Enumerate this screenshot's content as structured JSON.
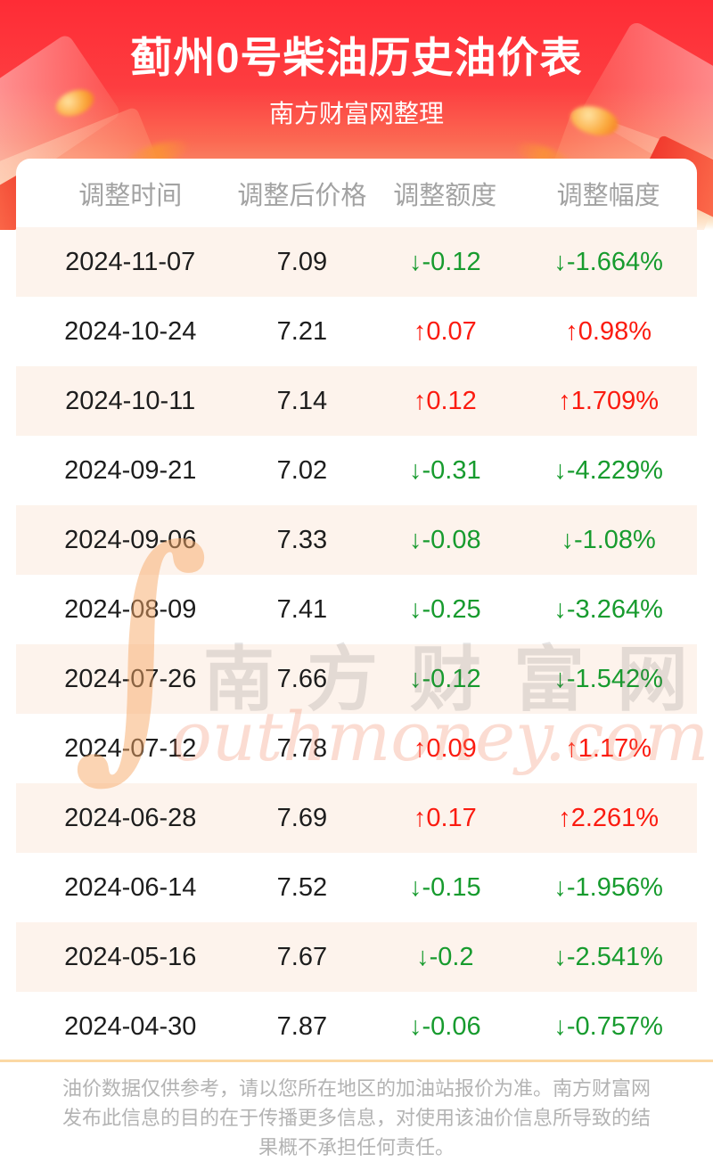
{
  "page": {
    "title": "蓟州0号柴油历史油价表",
    "subtitle": "南方财富网整理"
  },
  "watermark": {
    "s_glyph": "∫",
    "cn": "南方财富网",
    "en": "outhmoney.com"
  },
  "table": {
    "headers": [
      "调整时间",
      "调整后价格",
      "调整额度",
      "调整幅度"
    ],
    "rows": [
      {
        "date": "2024-11-07",
        "price": "7.09",
        "change": "↓-0.12",
        "pct": "↓-1.664%",
        "trend": "down"
      },
      {
        "date": "2024-10-24",
        "price": "7.21",
        "change": "↑0.07",
        "pct": "↑0.98%",
        "trend": "up"
      },
      {
        "date": "2024-10-11",
        "price": "7.14",
        "change": "↑0.12",
        "pct": "↑1.709%",
        "trend": "up"
      },
      {
        "date": "2024-09-21",
        "price": "7.02",
        "change": "↓-0.31",
        "pct": "↓-4.229%",
        "trend": "down"
      },
      {
        "date": "2024-09-06",
        "price": "7.33",
        "change": "↓-0.08",
        "pct": "↓-1.08%",
        "trend": "down"
      },
      {
        "date": "2024-08-09",
        "price": "7.41",
        "change": "↓-0.25",
        "pct": "↓-3.264%",
        "trend": "down"
      },
      {
        "date": "2024-07-26",
        "price": "7.66",
        "change": "↓-0.12",
        "pct": "↓-1.542%",
        "trend": "down"
      },
      {
        "date": "2024-07-12",
        "price": "7.78",
        "change": "↑0.09",
        "pct": "↑1.17%",
        "trend": "up"
      },
      {
        "date": "2024-06-28",
        "price": "7.69",
        "change": "↑0.17",
        "pct": "↑2.261%",
        "trend": "up"
      },
      {
        "date": "2024-06-14",
        "price": "7.52",
        "change": "↓-0.15",
        "pct": "↓-1.956%",
        "trend": "down"
      },
      {
        "date": "2024-05-16",
        "price": "7.67",
        "change": "↓-0.2",
        "pct": "↓-2.541%",
        "trend": "down"
      },
      {
        "date": "2024-04-30",
        "price": "7.87",
        "change": "↓-0.06",
        "pct": "↓-0.757%",
        "trend": "down"
      }
    ]
  },
  "footer": {
    "disclaimer": "油价数据仅供参考，请以您所在地区的加油站报价为准。南方财富网发布此信息的目的在于传播更多信息，对使用该油价信息所导致的结果概不承担任何责任。"
  },
  "colors": {
    "accent_red": "#fe2c36",
    "up": "#fb1b10",
    "down": "#179b2e",
    "row_stripe": "#fdf3ec",
    "separator": "#fbd8a4",
    "header_text": "#a2a2a2",
    "footer_text": "#b3b3b3"
  },
  "chart_data": {
    "type": "table",
    "title": "蓟州0号柴油历史油价表",
    "subtitle": "南方财富网整理",
    "columns": [
      "调整时间",
      "调整后价格",
      "调整额度",
      "调整幅度"
    ],
    "rows": [
      [
        "2024-11-07",
        7.09,
        -0.12,
        "-1.664%"
      ],
      [
        "2024-10-24",
        7.21,
        0.07,
        "0.98%"
      ],
      [
        "2024-10-11",
        7.14,
        0.12,
        "1.709%"
      ],
      [
        "2024-09-21",
        7.02,
        -0.31,
        "-4.229%"
      ],
      [
        "2024-09-06",
        7.33,
        -0.08,
        "-1.08%"
      ],
      [
        "2024-08-09",
        7.41,
        -0.25,
        "-3.264%"
      ],
      [
        "2024-07-26",
        7.66,
        -0.12,
        "-1.542%"
      ],
      [
        "2024-07-12",
        7.78,
        0.09,
        "1.17%"
      ],
      [
        "2024-06-28",
        7.69,
        0.17,
        "2.261%"
      ],
      [
        "2024-06-14",
        7.52,
        -0.15,
        "-1.956%"
      ],
      [
        "2024-05-16",
        7.67,
        -0.2,
        "-2.541%"
      ],
      [
        "2024-04-30",
        7.87,
        -0.06,
        "-0.757%"
      ]
    ],
    "layout_hints": {
      "striped_rows": "odd rows light peach",
      "up_color": "red",
      "down_color": "green"
    }
  }
}
